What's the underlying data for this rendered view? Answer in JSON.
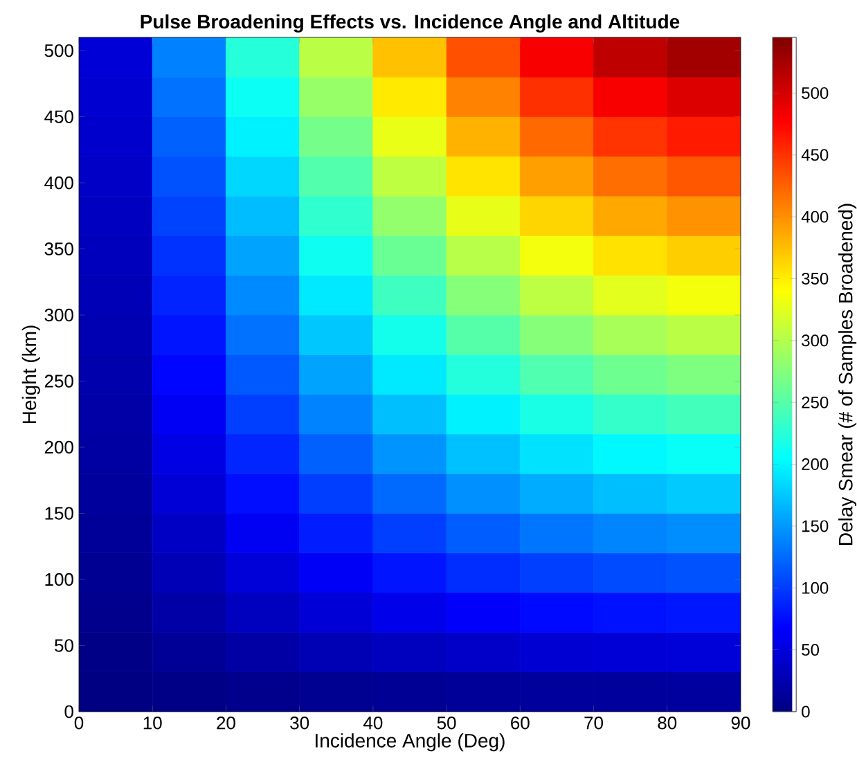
{
  "chart_data": {
    "type": "heatmap",
    "title": "Pulse Broadening Effects vs. Incidence Angle and Altitude",
    "xlabel": "Incidence Angle (Deg)",
    "ylabel": "Height (km)",
    "clabel": "Delay Smear (# of Samples Broadened)",
    "x": [
      5,
      15,
      25,
      35,
      45,
      55,
      65,
      75,
      85
    ],
    "y": [
      495,
      465,
      435,
      405,
      375,
      345,
      315,
      285,
      255,
      225,
      195,
      165,
      135,
      105,
      75,
      45,
      15
    ],
    "cells": [
      [
        46,
        137,
        224,
        304,
        374,
        434,
        480,
        511,
        527
      ],
      [
        43,
        129,
        210,
        285,
        352,
        407,
        451,
        480,
        495
      ],
      [
        41,
        120,
        197,
        267,
        329,
        381,
        421,
        449,
        463
      ],
      [
        38,
        112,
        183,
        248,
        306,
        355,
        392,
        418,
        431
      ],
      [
        35,
        104,
        169,
        230,
        283,
        328,
        363,
        387,
        399
      ],
      [
        32,
        95,
        156,
        212,
        261,
        302,
        334,
        356,
        367
      ],
      [
        29,
        87,
        142,
        193,
        238,
        276,
        305,
        325,
        335
      ],
      [
        27,
        79,
        129,
        175,
        215,
        250,
        276,
        294,
        304
      ],
      [
        24,
        71,
        115,
        156,
        193,
        223,
        247,
        263,
        272
      ],
      [
        21,
        62,
        102,
        138,
        170,
        197,
        218,
        232,
        240
      ],
      [
        18,
        54,
        88,
        120,
        147,
        171,
        189,
        201,
        208
      ],
      [
        15,
        46,
        75,
        101,
        125,
        145,
        160,
        170,
        176
      ],
      [
        13,
        37,
        61,
        83,
        102,
        118,
        131,
        139,
        144
      ],
      [
        10,
        29,
        47,
        64,
        79,
        92,
        102,
        108,
        112
      ],
      [
        7,
        21,
        34,
        46,
        57,
        66,
        73,
        77,
        80
      ],
      [
        4,
        12,
        20,
        28,
        34,
        39,
        44,
        46,
        48
      ],
      [
        1,
        4,
        7,
        9,
        11,
        13,
        15,
        15,
        16
      ]
    ],
    "xlim": [
      0,
      90
    ],
    "ylim": [
      0,
      510
    ],
    "xticks": [
      0,
      10,
      20,
      30,
      40,
      50,
      60,
      70,
      80,
      90
    ],
    "yticks": [
      0,
      50,
      100,
      150,
      200,
      250,
      300,
      350,
      400,
      450,
      500
    ],
    "clim": [
      0,
      545
    ],
    "cticks": [
      0,
      50,
      100,
      150,
      200,
      250,
      300,
      350,
      400,
      450,
      500
    ]
  }
}
